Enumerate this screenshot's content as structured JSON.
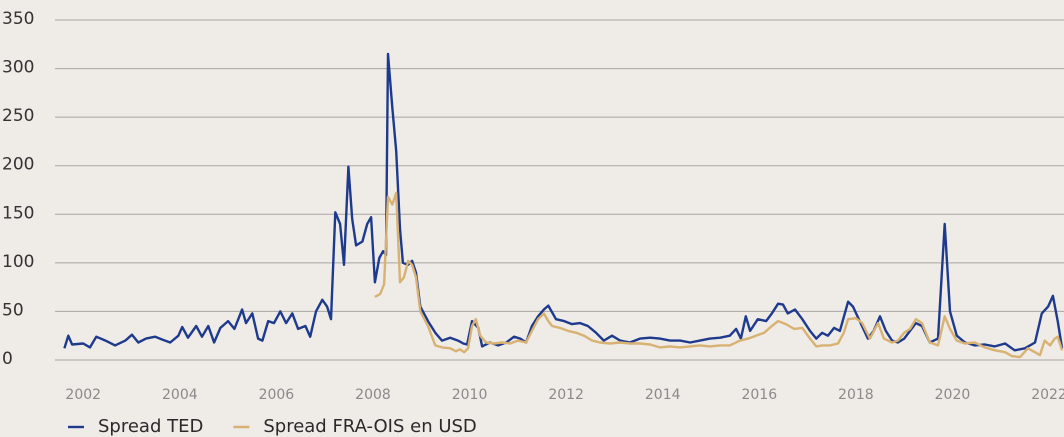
{
  "chart_data": {
    "type": "line",
    "xlim": [
      2001.56,
      2022.31
    ],
    "xticks": [
      2002,
      2004,
      2006,
      2008,
      2010,
      2012,
      2014,
      2016,
      2018,
      2020,
      2022
    ],
    "ylim": [
      0,
      350
    ],
    "yticks": [
      0,
      50,
      100,
      150,
      200,
      250,
      300,
      350
    ],
    "grid": true,
    "legend": "bottom-left",
    "series": [
      {
        "name": "Spread TED",
        "color": "#1e3a8c",
        "x": [
          2001.61,
          2001.69,
          2001.77,
          2002.0,
          2002.14,
          2002.27,
          2002.46,
          2002.66,
          2002.87,
          2003.01,
          2003.14,
          2003.3,
          2003.49,
          2003.64,
          2003.8,
          2003.97,
          2004.05,
          2004.17,
          2004.34,
          2004.46,
          2004.59,
          2004.71,
          2004.84,
          2005.0,
          2005.13,
          2005.29,
          2005.37,
          2005.5,
          2005.62,
          2005.71,
          2005.83,
          2005.95,
          2006.08,
          2006.2,
          2006.33,
          2006.45,
          2006.6,
          2006.7,
          2006.82,
          2006.95,
          2007.05,
          2007.13,
          2007.22,
          2007.32,
          2007.4,
          2007.49,
          2007.57,
          2007.65,
          2007.78,
          2007.88,
          2007.96,
          2008.04,
          2008.13,
          2008.21,
          2008.27,
          2008.31,
          2008.4,
          2008.48,
          2008.56,
          2008.62,
          2008.73,
          2008.81,
          2008.89,
          2008.98,
          2009.14,
          2009.29,
          2009.43,
          2009.6,
          2009.76,
          2009.87,
          2009.95,
          2010.05,
          2010.18,
          2010.26,
          2010.42,
          2010.59,
          2010.76,
          2010.92,
          2011.05,
          2011.17,
          2011.29,
          2011.42,
          2011.54,
          2011.63,
          2011.79,
          2011.96,
          2012.12,
          2012.29,
          2012.45,
          2012.62,
          2012.78,
          2012.95,
          2013.12,
          2013.32,
          2013.53,
          2013.74,
          2013.94,
          2014.15,
          2014.36,
          2014.57,
          2014.77,
          2014.98,
          2015.19,
          2015.39,
          2015.52,
          2015.62,
          2015.72,
          2015.81,
          2015.97,
          2016.14,
          2016.26,
          2016.39,
          2016.49,
          2016.59,
          2016.74,
          2016.89,
          2017.05,
          2017.18,
          2017.3,
          2017.42,
          2017.55,
          2017.67,
          2017.84,
          2017.94,
          2018.08,
          2018.25,
          2018.37,
          2018.5,
          2018.62,
          2018.75,
          2018.87,
          2019.0,
          2019.12,
          2019.24,
          2019.37,
          2019.53,
          2019.7,
          2019.84,
          2019.95,
          2020.09,
          2020.26,
          2020.46,
          2020.67,
          2020.88,
          2021.09,
          2021.29,
          2021.5,
          2021.71,
          2021.85,
          2021.98,
          2022.08,
          2022.18,
          2022.27
        ],
        "values": [
          12,
          25,
          16,
          17,
          13,
          24,
          20,
          15,
          20,
          26,
          18,
          22,
          24,
          21,
          18,
          25,
          34,
          23,
          35,
          24,
          35,
          18,
          33,
          40,
          32,
          52,
          38,
          48,
          22,
          20,
          40,
          38,
          50,
          38,
          48,
          32,
          35,
          24,
          50,
          62,
          55,
          42,
          152,
          140,
          98,
          199,
          145,
          118,
          122,
          140,
          147,
          80,
          105,
          112,
          108,
          315,
          260,
          215,
          135,
          100,
          98,
          102,
          90,
          55,
          40,
          28,
          20,
          23,
          20,
          17,
          16,
          40,
          33,
          14,
          18,
          15,
          18,
          24,
          22,
          18,
          35,
          45,
          52,
          56,
          42,
          40,
          37,
          38,
          35,
          28,
          20,
          25,
          20,
          18,
          22,
          23,
          22,
          20,
          20,
          18,
          20,
          22,
          23,
          25,
          32,
          22,
          45,
          30,
          42,
          40,
          48,
          58,
          57,
          48,
          52,
          42,
          30,
          22,
          28,
          25,
          33,
          30,
          60,
          55,
          40,
          22,
          30,
          45,
          30,
          20,
          18,
          22,
          30,
          38,
          35,
          18,
          22,
          140,
          50,
          25,
          18,
          15,
          16,
          14,
          17,
          10,
          12,
          18,
          48,
          55,
          66,
          40,
          12
        ]
      },
      {
        "name": "Spread FRA-OIS en USD",
        "color": "#d8b273",
        "x": [
          2008.04,
          2008.15,
          2008.23,
          2008.31,
          2008.4,
          2008.48,
          2008.56,
          2008.64,
          2008.73,
          2008.81,
          2008.89,
          2008.98,
          2009.14,
          2009.29,
          2009.43,
          2009.6,
          2009.72,
          2009.8,
          2009.89,
          2009.97,
          2010.05,
          2010.13,
          2010.22,
          2010.34,
          2010.51,
          2010.67,
          2010.84,
          2011.0,
          2011.17,
          2011.29,
          2011.42,
          2011.54,
          2011.63,
          2011.71,
          2011.87,
          2012.04,
          2012.21,
          2012.37,
          2012.54,
          2012.7,
          2012.91,
          2013.12,
          2013.32,
          2013.53,
          2013.74,
          2013.94,
          2014.15,
          2014.36,
          2014.57,
          2014.77,
          2014.98,
          2015.19,
          2015.39,
          2015.6,
          2015.77,
          2015.93,
          2016.1,
          2016.26,
          2016.39,
          2016.55,
          2016.72,
          2016.89,
          2017.05,
          2017.18,
          2017.3,
          2017.46,
          2017.63,
          2017.75,
          2017.84,
          2018.0,
          2018.13,
          2018.29,
          2018.46,
          2018.58,
          2018.75,
          2018.87,
          2019.0,
          2019.12,
          2019.24,
          2019.37,
          2019.53,
          2019.7,
          2019.84,
          2019.95,
          2020.09,
          2020.26,
          2020.46,
          2020.67,
          2020.88,
          2021.09,
          2021.23,
          2021.4,
          2021.56,
          2021.71,
          2021.81,
          2021.91,
          2022.02,
          2022.12,
          2022.18,
          2022.27
        ],
        "values": [
          65,
          68,
          78,
          168,
          160,
          172,
          80,
          85,
          102,
          98,
          85,
          50,
          35,
          15,
          13,
          12,
          9,
          11,
          8,
          12,
          35,
          42,
          25,
          18,
          17,
          18,
          17,
          20,
          18,
          30,
          42,
          48,
          40,
          35,
          33,
          30,
          28,
          25,
          20,
          18,
          17,
          18,
          17,
          17,
          16,
          13,
          14,
          13,
          14,
          15,
          14,
          15,
          15,
          20,
          22,
          25,
          28,
          35,
          40,
          37,
          32,
          33,
          22,
          14,
          15,
          15,
          17,
          28,
          42,
          43,
          38,
          22,
          38,
          22,
          18,
          20,
          28,
          32,
          42,
          38,
          18,
          15,
          45,
          32,
          20,
          17,
          18,
          13,
          10,
          8,
          4,
          3,
          12,
          8,
          5,
          20,
          15,
          22,
          24,
          10
        ]
      }
    ]
  }
}
